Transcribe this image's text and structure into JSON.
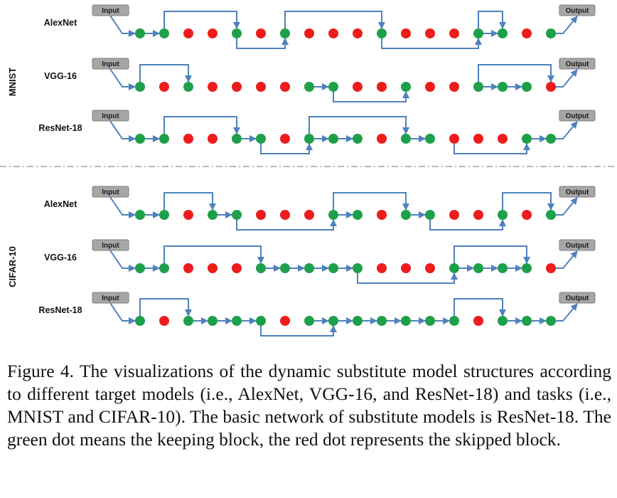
{
  "groups": [
    {
      "label": "MNIST",
      "rows": [
        {
          "label": "AlexNet",
          "keep": [
            1,
            1,
            0,
            0,
            1,
            0,
            1,
            0,
            0,
            0,
            1,
            0,
            0,
            0,
            1,
            1,
            0,
            1
          ],
          "skips": [
            [
              1,
              4,
              "up"
            ],
            [
              4,
              6,
              "down"
            ],
            [
              6,
              10,
              "up"
            ],
            [
              10,
              14,
              "down"
            ],
            [
              14,
              15,
              "up"
            ]
          ]
        },
        {
          "label": "VGG-16",
          "keep": [
            1,
            0,
            1,
            0,
            0,
            0,
            0,
            1,
            1,
            0,
            0,
            1,
            0,
            0,
            1,
            1,
            1,
            0
          ],
          "skips": [
            [
              0,
              2,
              "up"
            ],
            [
              8,
              11,
              "down"
            ],
            [
              14,
              17,
              "up"
            ]
          ]
        },
        {
          "label": "ResNet-18",
          "keep": [
            1,
            1,
            0,
            0,
            1,
            1,
            0,
            1,
            1,
            1,
            0,
            1,
            1,
            0,
            0,
            0,
            1,
            1
          ],
          "skips": [
            [
              1,
              4,
              "up"
            ],
            [
              5,
              7,
              "down"
            ],
            [
              7,
              11,
              "up"
            ],
            [
              13,
              16,
              "down"
            ]
          ]
        }
      ]
    },
    {
      "label": "CIFAR-10",
      "rows": [
        {
          "label": "AlexNet",
          "keep": [
            1,
            1,
            0,
            1,
            1,
            0,
            0,
            0,
            1,
            1,
            0,
            1,
            1,
            0,
            0,
            1,
            0,
            1
          ],
          "skips": [
            [
              1,
              3,
              "up"
            ],
            [
              4,
              8,
              "down"
            ],
            [
              8,
              11,
              "up"
            ],
            [
              12,
              15,
              "down"
            ],
            [
              15,
              17,
              "up"
            ]
          ]
        },
        {
          "label": "VGG-16",
          "keep": [
            1,
            1,
            0,
            0,
            0,
            1,
            1,
            1,
            1,
            1,
            0,
            0,
            0,
            1,
            1,
            1,
            1,
            0
          ],
          "skips": [
            [
              1,
              5,
              "up"
            ],
            [
              9,
              13,
              "down"
            ],
            [
              13,
              16,
              "up"
            ]
          ]
        },
        {
          "label": "ResNet-18",
          "keep": [
            1,
            0,
            1,
            1,
            1,
            1,
            0,
            1,
            1,
            1,
            1,
            1,
            1,
            1,
            0,
            1,
            1,
            1
          ],
          "skips": [
            [
              0,
              2,
              "up"
            ],
            [
              5,
              8,
              "down"
            ],
            [
              13,
              15,
              "up"
            ]
          ]
        }
      ]
    }
  ],
  "boxes": {
    "input": "Input",
    "output": "Output"
  },
  "colors": {
    "keep": "#1ea04a",
    "skip": "#ee1c1c",
    "connector": "#4f81bd",
    "box_fill": "#a6a6a6",
    "divider": "#b8b8b8"
  },
  "caption": "Figure 4. The visualizations of the dynamic substitute model structures according to different target models (i.e., AlexNet, VGG-16, and ResNet-18) and tasks (i.e., MNIST and CIFAR-10). The basic network of substitute models is ResNet-18. The green dot means the keeping block, the red dot represents the skipped block."
}
